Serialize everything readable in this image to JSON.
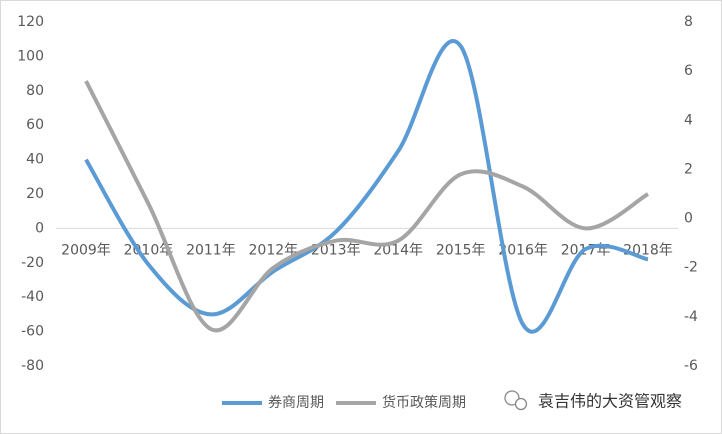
{
  "chart_data": {
    "type": "line",
    "categories": [
      "2009年",
      "2010年",
      "2011年",
      "2012年",
      "2013年",
      "2014年",
      "2015年",
      "2016年",
      "2017年",
      "2018年"
    ],
    "series": [
      {
        "name": "券商周期",
        "color": "#5b9bd5",
        "values": [
          40,
          -21,
          -50,
          -25,
          -2,
          45,
          106,
          -56,
          -12,
          -18
        ]
      },
      {
        "name": "货币政策周期",
        "color": "#a5a5a5",
        "axis": "y2",
        "values": [
          5.6,
          0.6,
          -4.5,
          -2.0,
          -0.9,
          -0.9,
          1.8,
          1.3,
          -0.4,
          1.0
        ]
      }
    ],
    "ylim": [
      -80,
      120
    ],
    "yticks": [
      -80,
      -60,
      -40,
      -20,
      0,
      20,
      40,
      60,
      80,
      100,
      120
    ],
    "y2lim": [
      -6,
      8
    ],
    "y2ticks": [
      -6,
      -4,
      -2,
      0,
      2,
      4,
      6,
      8
    ],
    "smooth": true,
    "watermark": "袁吉伟的大资管观察"
  }
}
